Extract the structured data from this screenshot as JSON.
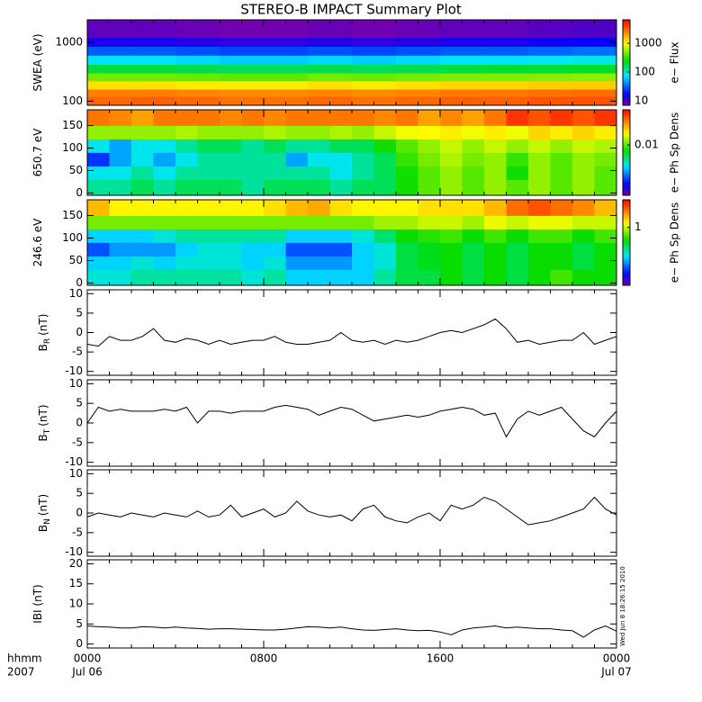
{
  "title": "STEREO-B IMPACT Summary Plot",
  "timestamp": "Wed Jun  8 18:26:15 2010",
  "x_axis": {
    "xlim": [
      0,
      24
    ],
    "xminor": 1,
    "labels": [
      "hhmm",
      "2007"
    ],
    "xticks": [
      {
        "value": 0,
        "label": "0000",
        "date": "Jul 06"
      },
      {
        "value": 8,
        "label": "0800"
      },
      {
        "value": 16,
        "label": "1600"
      },
      {
        "value": 24,
        "label": "0000",
        "date": "Jul 07"
      }
    ]
  },
  "chart_data": [
    {
      "type": "heatmap",
      "ylabel": "SWEA (eV)",
      "ylog": true,
      "ylim": [
        85,
        2400
      ],
      "yticks": [
        100,
        1000
      ],
      "xbins": [
        0,
        2,
        4,
        6,
        8,
        10,
        12,
        14,
        16,
        18,
        20,
        22,
        24
      ],
      "ybins": [
        85,
        120,
        160,
        220,
        300,
        420,
        600,
        850,
        1200,
        2400
      ],
      "z": [
        [
          3000,
          3200,
          3000,
          2800,
          2800,
          3000,
          2800,
          3000,
          3200,
          3200,
          3500,
          3500
        ],
        [
          2500,
          2500,
          2400,
          2300,
          2300,
          2400,
          2300,
          2400,
          2600,
          2700,
          2800,
          2900
        ],
        [
          1200,
          1200,
          1100,
          1100,
          1100,
          1200,
          1100,
          1200,
          1300,
          1300,
          1400,
          1400
        ],
        [
          450,
          450,
          420,
          400,
          400,
          450,
          420,
          450,
          480,
          480,
          500,
          520
        ],
        [
          180,
          180,
          170,
          160,
          160,
          170,
          160,
          170,
          180,
          190,
          190,
          200
        ],
        [
          70,
          70,
          65,
          60,
          60,
          65,
          60,
          65,
          70,
          70,
          75,
          80
        ],
        [
          30,
          30,
          28,
          26,
          26,
          28,
          26,
          28,
          30,
          30,
          32,
          34
        ],
        [
          14,
          14,
          13,
          12,
          12,
          13,
          12,
          13,
          14,
          14,
          15,
          16
        ],
        [
          8,
          8,
          7.5,
          7,
          7,
          7.5,
          7,
          7.5,
          8,
          8,
          8.5,
          9
        ]
      ],
      "colorbar": {
        "label": "e− Flux",
        "log": true,
        "clim": [
          7,
          6500
        ],
        "ticks": [
          10,
          100,
          1000
        ]
      }
    },
    {
      "type": "heatmap",
      "ylabel": "650.7 eV",
      "ylog": false,
      "ylim": [
        -5,
        185
      ],
      "yticks": [
        0,
        50,
        100,
        150
      ],
      "xbins": [
        0,
        1,
        2,
        3,
        4,
        5,
        6,
        7,
        8,
        9,
        10,
        11,
        12,
        13,
        14,
        15,
        16,
        17,
        18,
        19,
        20,
        21,
        22,
        23,
        24
      ],
      "ybins": [
        -5,
        30,
        60,
        90,
        120,
        150,
        185
      ],
      "z": [
        [
          0.005,
          0.005,
          0.006,
          0.005,
          0.006,
          0.006,
          0.006,
          0.005,
          0.006,
          0.006,
          0.006,
          0.005,
          0.006,
          0.006,
          0.008,
          0.01,
          0.012,
          0.01,
          0.012,
          0.01,
          0.012,
          0.01,
          0.012,
          0.01
        ],
        [
          0.004,
          0.004,
          0.005,
          0.004,
          0.005,
          0.005,
          0.005,
          0.005,
          0.005,
          0.005,
          0.005,
          0.004,
          0.005,
          0.006,
          0.008,
          0.01,
          0.012,
          0.01,
          0.012,
          0.008,
          0.012,
          0.01,
          0.012,
          0.01
        ],
        [
          0.002,
          0.003,
          0.004,
          0.003,
          0.004,
          0.005,
          0.005,
          0.005,
          0.005,
          0.003,
          0.004,
          0.004,
          0.005,
          0.006,
          0.009,
          0.011,
          0.013,
          0.011,
          0.012,
          0.009,
          0.012,
          0.01,
          0.012,
          0.011
        ],
        [
          0.004,
          0.003,
          0.004,
          0.004,
          0.005,
          0.006,
          0.006,
          0.005,
          0.006,
          0.005,
          0.005,
          0.006,
          0.006,
          0.008,
          0.01,
          0.012,
          0.014,
          0.012,
          0.014,
          0.012,
          0.014,
          0.012,
          0.014,
          0.013
        ],
        [
          0.012,
          0.012,
          0.012,
          0.012,
          0.013,
          0.012,
          0.012,
          0.012,
          0.013,
          0.012,
          0.012,
          0.013,
          0.012,
          0.014,
          0.016,
          0.017,
          0.018,
          0.016,
          0.018,
          0.016,
          0.02,
          0.018,
          0.02,
          0.018
        ],
        [
          0.03,
          0.028,
          0.025,
          0.03,
          0.03,
          0.03,
          0.028,
          0.03,
          0.028,
          0.03,
          0.03,
          0.03,
          0.03,
          0.028,
          0.03,
          0.025,
          0.028,
          0.025,
          0.03,
          0.04,
          0.035,
          0.04,
          0.035,
          0.04
        ]
      ],
      "colorbar": {
        "label": "e− Ph Sp Dens",
        "log": true,
        "clim": [
          0.001,
          0.05
        ],
        "ticks": [
          0.01
        ]
      }
    },
    {
      "type": "heatmap",
      "ylabel": "246.6 eV",
      "ylog": false,
      "ylim": [
        -5,
        185
      ],
      "yticks": [
        0,
        50,
        100,
        150
      ],
      "xbins": [
        0,
        1,
        2,
        3,
        4,
        5,
        6,
        7,
        8,
        9,
        10,
        11,
        12,
        13,
        14,
        15,
        16,
        17,
        18,
        19,
        20,
        21,
        22,
        23,
        24
      ],
      "ybins": [
        -5,
        30,
        60,
        90,
        120,
        150,
        185
      ],
      "z": [
        [
          0.35,
          0.35,
          0.4,
          0.4,
          0.4,
          0.4,
          0.4,
          0.35,
          0.4,
          0.3,
          0.3,
          0.3,
          0.3,
          0.4,
          0.5,
          0.5,
          0.6,
          0.5,
          0.6,
          0.5,
          0.6,
          0.7,
          0.6,
          0.6
        ],
        [
          0.3,
          0.3,
          0.35,
          0.3,
          0.35,
          0.35,
          0.35,
          0.3,
          0.35,
          0.25,
          0.25,
          0.25,
          0.3,
          0.35,
          0.5,
          0.55,
          0.6,
          0.5,
          0.6,
          0.5,
          0.6,
          0.6,
          0.5,
          0.6
        ],
        [
          0.2,
          0.25,
          0.25,
          0.25,
          0.3,
          0.35,
          0.35,
          0.3,
          0.3,
          0.2,
          0.2,
          0.2,
          0.3,
          0.35,
          0.5,
          0.55,
          0.6,
          0.5,
          0.6,
          0.5,
          0.6,
          0.6,
          0.5,
          0.6
        ],
        [
          0.3,
          0.3,
          0.3,
          0.35,
          0.4,
          0.4,
          0.4,
          0.4,
          0.4,
          0.3,
          0.3,
          0.3,
          0.35,
          0.45,
          0.6,
          0.65,
          0.7,
          0.6,
          0.7,
          0.6,
          0.7,
          0.7,
          0.6,
          0.7
        ],
        [
          0.8,
          0.8,
          0.8,
          0.8,
          0.8,
          0.8,
          0.8,
          0.8,
          0.8,
          0.8,
          0.8,
          0.8,
          0.8,
          0.9,
          0.9,
          1,
          1,
          0.9,
          1.1,
          1,
          1.1,
          1.1,
          1,
          1
        ],
        [
          1.5,
          1.2,
          1.2,
          1.2,
          1.2,
          1.2,
          1.2,
          1.2,
          1.3,
          1.5,
          1.6,
          1.3,
          1.2,
          1.2,
          1.2,
          1.3,
          1.3,
          1.3,
          1.5,
          2,
          2.2,
          2,
          1.8,
          1.5
        ]
      ],
      "colorbar": {
        "label": "e− Ph Sp Dens",
        "log": true,
        "clim": [
          0.1,
          3
        ],
        "ticks": [
          1
        ]
      }
    },
    {
      "type": "line",
      "ylabel": "B",
      "ylabel_sub": "R",
      "ylabel_unit": "(nT)",
      "ylim": [
        -11,
        11
      ],
      "yticks": [
        -10,
        -5,
        0,
        5,
        10
      ],
      "color": "#000000",
      "x": [
        0,
        0.5,
        1,
        1.5,
        2,
        2.5,
        3,
        3.5,
        4,
        4.5,
        5,
        5.5,
        6,
        6.5,
        7,
        7.5,
        8,
        8.5,
        9,
        9.5,
        10,
        10.5,
        11,
        11.5,
        12,
        12.5,
        13,
        13.5,
        14,
        14.5,
        15,
        15.5,
        16,
        16.5,
        17,
        17.5,
        18,
        18.5,
        19,
        19.5,
        20,
        20.5,
        21,
        21.5,
        22,
        22.5,
        23,
        23.5,
        24
      ],
      "values": [
        -3,
        -3.5,
        -1,
        -2,
        -2,
        -1,
        1,
        -2,
        -2.5,
        -1.5,
        -2,
        -3,
        -2,
        -3,
        -2.5,
        -2,
        -2,
        -1,
        -2.5,
        -3,
        -3,
        -2.5,
        -2,
        0,
        -2,
        -2.5,
        -2,
        -3,
        -2,
        -2.5,
        -2,
        -1,
        0,
        0.5,
        0,
        1,
        2,
        3.5,
        1,
        -2.5,
        -2,
        -3,
        -2.5,
        -2,
        -2,
        0,
        -3,
        -2,
        -1
      ]
    },
    {
      "type": "line",
      "ylabel": "B",
      "ylabel_sub": "T",
      "ylabel_unit": "(nT)",
      "ylim": [
        -11,
        11
      ],
      "yticks": [
        -10,
        -5,
        0,
        5,
        10
      ],
      "color": "#000000",
      "x": [
        0,
        0.5,
        1,
        1.5,
        2,
        2.5,
        3,
        3.5,
        4,
        4.5,
        5,
        5.5,
        6,
        6.5,
        7,
        7.5,
        8,
        8.5,
        9,
        9.5,
        10,
        10.5,
        11,
        11.5,
        12,
        12.5,
        13,
        13.5,
        14,
        14.5,
        15,
        15.5,
        16,
        16.5,
        17,
        17.5,
        18,
        18.5,
        19,
        19.5,
        20,
        20.5,
        21,
        21.5,
        22,
        22.5,
        23,
        23.5,
        24
      ],
      "values": [
        0,
        4,
        3,
        3.5,
        3,
        3,
        3,
        3.5,
        3,
        4,
        0,
        3,
        3,
        2.5,
        3,
        3,
        3,
        4,
        4.5,
        4,
        3.5,
        2,
        3,
        4,
        3.5,
        2,
        0.5,
        1,
        1.5,
        2,
        1.5,
        2,
        3,
        3.5,
        4,
        3.5,
        2,
        2.5,
        -3.5,
        1,
        3,
        2,
        3,
        4,
        1,
        -2,
        -3.5,
        0,
        3
      ]
    },
    {
      "type": "line",
      "ylabel": "B",
      "ylabel_sub": "N",
      "ylabel_unit": "(nT)",
      "ylim": [
        -11,
        11
      ],
      "yticks": [
        -10,
        -5,
        0,
        5,
        10
      ],
      "color": "#000000",
      "x": [
        0,
        0.5,
        1,
        1.5,
        2,
        2.5,
        3,
        3.5,
        4,
        4.5,
        5,
        5.5,
        6,
        6.5,
        7,
        7.5,
        8,
        8.5,
        9,
        9.5,
        10,
        10.5,
        11,
        11.5,
        12,
        12.5,
        13,
        13.5,
        14,
        14.5,
        15,
        15.5,
        16,
        16.5,
        17,
        17.5,
        18,
        18.5,
        19,
        19.5,
        20,
        20.5,
        21,
        21.5,
        22,
        22.5,
        23,
        23.5,
        24
      ],
      "values": [
        -1,
        0,
        -0.5,
        -1,
        0,
        -0.5,
        -1,
        0,
        -0.5,
        -1,
        0.5,
        -1,
        -0.5,
        2,
        -1,
        0,
        1,
        -1,
        0,
        3,
        0.5,
        -0.5,
        -1,
        -0.5,
        -2,
        1,
        2,
        -1,
        -2,
        -2.5,
        -1,
        0,
        -2,
        2,
        1,
        2,
        4,
        3,
        1,
        -1,
        -3,
        -2.5,
        -2,
        -1,
        0,
        1,
        4,
        1,
        -0.5
      ]
    },
    {
      "type": "line",
      "ylabel": "IBI (nT)",
      "ylim": [
        -1,
        21
      ],
      "yticks": [
        0,
        5,
        10,
        15,
        20
      ],
      "color": "#000000",
      "x": [
        0,
        0.5,
        1,
        1.5,
        2,
        2.5,
        3,
        3.5,
        4,
        4.5,
        5,
        5.5,
        6,
        6.5,
        7,
        7.5,
        8,
        8.5,
        9,
        9.5,
        10,
        10.5,
        11,
        11.5,
        12,
        12.5,
        13,
        13.5,
        14,
        14.5,
        15,
        15.5,
        16,
        16.5,
        17,
        17.5,
        18,
        18.5,
        19,
        19.5,
        20,
        20.5,
        21,
        21.5,
        22,
        22.5,
        23,
        23.5,
        24
      ],
      "values": [
        4.5,
        4.3,
        4.2,
        4,
        4,
        4.3,
        4.2,
        4,
        4.2,
        4,
        3.9,
        3.7,
        3.8,
        3.8,
        3.7,
        3.6,
        3.5,
        3.5,
        3.7,
        4,
        4.3,
        4.2,
        4,
        4.2,
        3.8,
        3.5,
        3.4,
        3.6,
        3.8,
        3.5,
        3.3,
        3.4,
        3,
        2.3,
        3.5,
        4,
        4.2,
        4.5,
        4,
        4.2,
        4,
        3.8,
        3.8,
        3.5,
        3.3,
        1.7,
        3.5,
        4.5,
        3.2
      ]
    }
  ]
}
